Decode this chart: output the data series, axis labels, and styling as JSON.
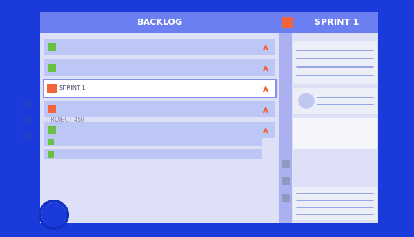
{
  "bg_color": "#1a3adb",
  "panel_bg": "#dde0f7",
  "header_color": "#6b7ff0",
  "white": "#ffffff",
  "green": "#6abf45",
  "orange": "#f4643c",
  "light_blue_row": "#bdc7f5",
  "medium_blue": "#8090f0",
  "light_strip": "#aab0f0",
  "gray_blue": "#9098c0",
  "dark_blue_sq": "#2040cc",
  "card_bg": "#eceef8",
  "card_white": "#f5f6fc",
  "avatar_color": "#c0c8f0",
  "backlog_title": "BACKLOG",
  "sprint_title": "SPRINT 1",
  "project_label": "PROJECT 450",
  "sprint1_label": "SPRINT 1",
  "line_color": "#8898e8"
}
